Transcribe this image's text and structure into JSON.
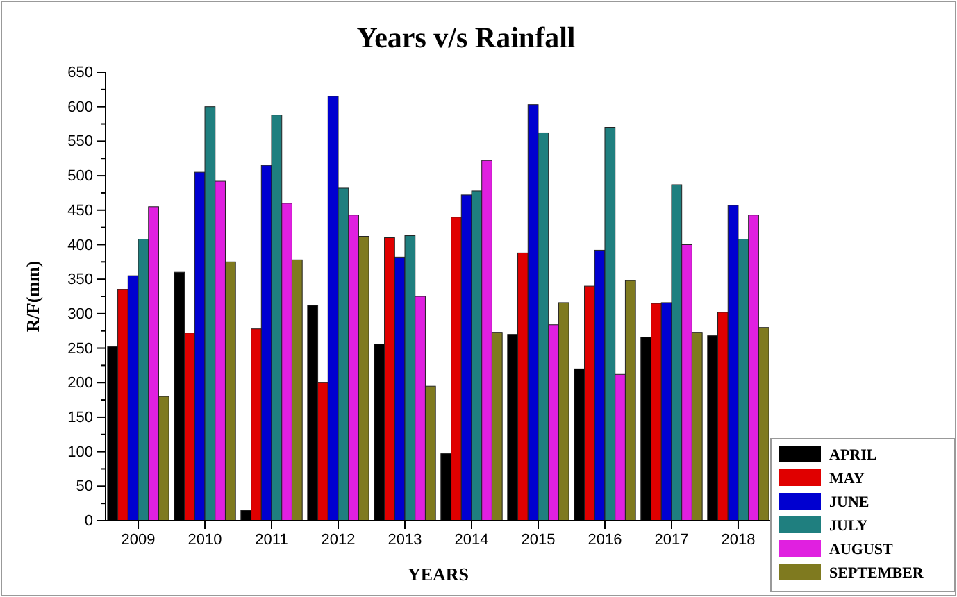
{
  "chart_data": {
    "type": "bar",
    "title": "Years v/s Rainfall",
    "xlabel": "YEARS",
    "ylabel": "R/F(mm)",
    "categories": [
      "2009",
      "2010",
      "2011",
      "2012",
      "2013",
      "2014",
      "2015",
      "2016",
      "2017",
      "2018"
    ],
    "series": [
      {
        "name": "APRIL",
        "color": "#000000",
        "values": [
          252,
          360,
          15,
          312,
          256,
          97,
          270,
          220,
          266,
          268
        ]
      },
      {
        "name": "MAY",
        "color": "#e00000",
        "values": [
          335,
          272,
          278,
          200,
          410,
          440,
          388,
          340,
          315,
          302
        ]
      },
      {
        "name": "JUNE",
        "color": "#0000d0",
        "values": [
          355,
          505,
          515,
          615,
          382,
          472,
          603,
          392,
          316,
          457
        ]
      },
      {
        "name": "JULY",
        "color": "#1f7f7f",
        "values": [
          408,
          600,
          588,
          482,
          413,
          478,
          562,
          570,
          487,
          408
        ]
      },
      {
        "name": "AUGUST",
        "color": "#e020e0",
        "values": [
          455,
          492,
          460,
          443,
          325,
          522,
          284,
          212,
          400,
          443
        ]
      },
      {
        "name": "SEPTEMBER",
        "color": "#7f7a1f",
        "values": [
          180,
          375,
          378,
          412,
          195,
          273,
          316,
          348,
          273,
          280
        ]
      }
    ],
    "ylim": [
      0,
      650
    ],
    "yticks": [
      0,
      50,
      100,
      150,
      200,
      250,
      300,
      350,
      400,
      450,
      500,
      550,
      600,
      650
    ],
    "grid": false,
    "legend": "bottom right"
  }
}
